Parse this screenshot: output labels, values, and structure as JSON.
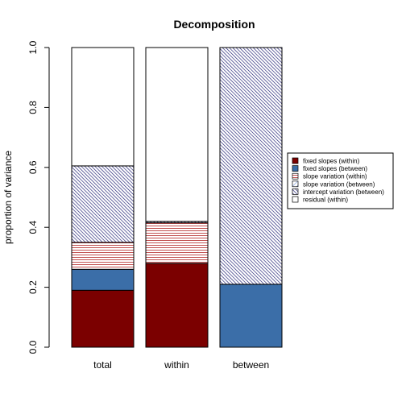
{
  "chart_data": {
    "type": "bar",
    "stacked": true,
    "title": "Decomposition",
    "xlabel": "",
    "ylabel": "proportion of variance",
    "ylim": [
      0,
      1
    ],
    "yticks": [
      "0.0",
      "0.2",
      "0.4",
      "0.6",
      "0.8",
      "1.0"
    ],
    "categories": [
      "total",
      "within",
      "between"
    ],
    "legend_position": "right",
    "series": [
      {
        "name": "fixed slopes (within)",
        "fill": "#7B0000",
        "pattern": "solid",
        "values": [
          0.19,
          0.28,
          0.0
        ]
      },
      {
        "name": "fixed slopes (between)",
        "fill": "#3B6EA8",
        "pattern": "solid",
        "values": [
          0.07,
          0.0,
          0.21
        ]
      },
      {
        "name": "slope variation (within)",
        "fill": "#B22222",
        "pattern": "hlines",
        "values": [
          0.09,
          0.135,
          0.0
        ]
      },
      {
        "name": "slope variation (between)",
        "fill": "#6A8FD6",
        "pattern": "diagonal",
        "values": [
          0.0,
          0.0,
          0.0
        ]
      },
      {
        "name": "intercept variation (between)",
        "fill": "#191970",
        "pattern": "diagonal",
        "values": [
          0.255,
          0.005,
          0.79
        ]
      },
      {
        "name": "residual (within)",
        "fill": "#ffffff",
        "pattern": "solid",
        "values": [
          0.395,
          0.58,
          0.0
        ]
      }
    ]
  }
}
